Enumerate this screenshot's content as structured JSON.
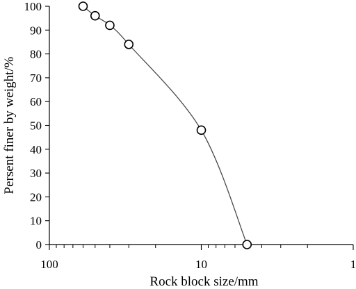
{
  "chart_data": {
    "type": "scatter",
    "xlabel": "Rock block size/mm",
    "ylabel": "Persent finer by weight/%",
    "x_scale": "log",
    "x_reversed": true,
    "xlim": [
      100,
      1
    ],
    "ylim": [
      0,
      100
    ],
    "x_ticks": [
      100,
      10,
      1
    ],
    "x_tick_labels": [
      "100",
      "10",
      "1"
    ],
    "y_ticks": [
      0,
      10,
      20,
      30,
      40,
      50,
      60,
      70,
      80,
      90,
      100
    ],
    "y_tick_labels": [
      "0",
      "10",
      "20",
      "30",
      "40",
      "50",
      "60",
      "70",
      "80",
      "90",
      "100"
    ],
    "grid": false,
    "marker": "open-circle",
    "line": "smooth",
    "series": [
      {
        "x": [
          60,
          50,
          40,
          30,
          10,
          5
        ],
        "y": [
          100,
          96,
          92,
          84,
          48,
          0
        ]
      }
    ]
  },
  "colors": {
    "axis": "#000000",
    "line": "#4a4a4a",
    "marker": "#000000"
  }
}
